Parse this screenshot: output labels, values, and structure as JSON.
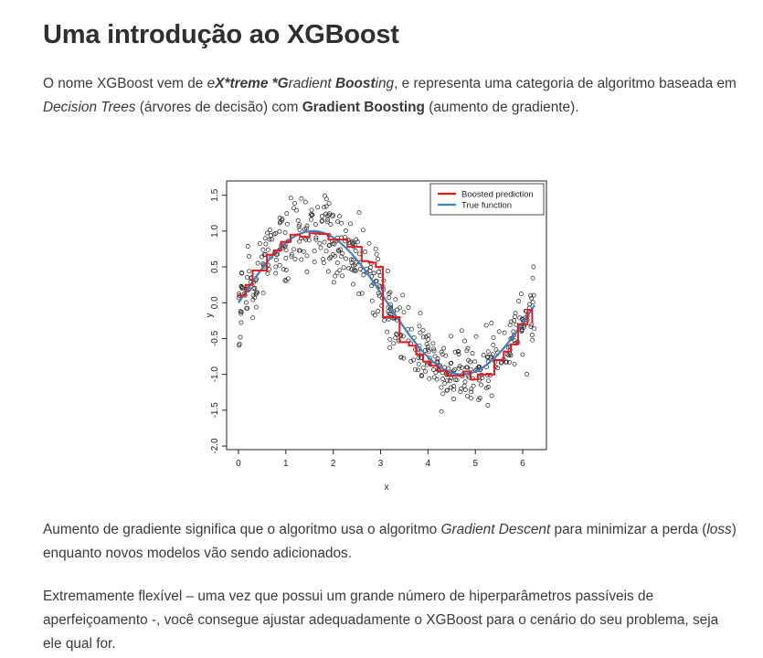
{
  "title": "Uma introdução ao XGBoost",
  "intro": {
    "pre": "O nome XGBoost vem de ",
    "em1a": "e",
    "em1b": "X*treme *G",
    "em1c": "radient ",
    "em1d": "Boost",
    "em1e": "ing",
    "mid": ", e representa uma categoria de algoritmo baseada em ",
    "em2": "Decision Trees",
    "mid2": " (árvores de decisão) com ",
    "strong": "Gradient Boosting",
    "post": " (aumento de gradiente)."
  },
  "chart_data": {
    "type": "scatter",
    "xlabel": "x",
    "ylabel": "y",
    "xlim": [
      -0.25,
      6.5
    ],
    "ylim": [
      -2.05,
      1.7
    ],
    "xticks": [
      "0",
      "1",
      "2",
      "3",
      "4",
      "5",
      "6"
    ],
    "yticks": [
      "-2.0",
      "-1.5",
      "-1.0",
      "-0.5",
      "0.0",
      "0.5",
      "1.0",
      "1.5"
    ],
    "legend_position": "top-right",
    "series": [
      {
        "name": "Boosted prediction",
        "kind": "step",
        "color": "#e31a1c",
        "x": [
          0.0,
          0.15,
          0.3,
          0.45,
          0.6,
          0.75,
          0.9,
          1.1,
          1.3,
          1.5,
          1.7,
          1.9,
          2.1,
          2.3,
          2.45,
          2.6,
          2.75,
          2.9,
          3.05,
          3.2,
          3.4,
          3.6,
          3.75,
          3.9,
          4.05,
          4.2,
          4.4,
          4.6,
          4.75,
          4.9,
          5.05,
          5.2,
          5.4,
          5.6,
          5.75,
          5.9,
          6.0,
          6.1,
          6.2
        ],
        "y": [
          0.1,
          0.25,
          0.45,
          0.45,
          0.67,
          0.73,
          0.85,
          0.95,
          0.92,
          0.97,
          0.96,
          0.88,
          0.88,
          0.78,
          0.78,
          0.58,
          0.56,
          0.5,
          -0.2,
          -0.2,
          -0.55,
          -0.6,
          -0.72,
          -0.82,
          -0.88,
          -0.95,
          -1.02,
          -1.02,
          -0.96,
          -1.07,
          -1.0,
          -1.0,
          -0.8,
          -0.68,
          -0.58,
          -0.3,
          -0.3,
          -0.1,
          -0.28
        ]
      },
      {
        "name": "True function",
        "kind": "line",
        "color": "#3f7fc4",
        "function": "sin(x)",
        "x_range": [
          0,
          6.25
        ]
      }
    ],
    "points_seed": 7,
    "points_count": 520,
    "points_noise": 0.25,
    "points_color": "#222222"
  },
  "p2": {
    "pre": "Aumento de gradiente significa que o algoritmo usa o algoritmo ",
    "em1": "Gradient Descent",
    "mid": " para minimizar a perda (",
    "em2": "loss",
    "post": ") enquanto novos modelos vão sendo adicionados."
  },
  "p3": "Extremamente flexível – uma vez que possui um grande número de hiperparâmetros passíveis de aperfeiçoamento -, você consegue ajustar adequadamente o XGBoost para o cenário do seu problema, seja ele qual for."
}
